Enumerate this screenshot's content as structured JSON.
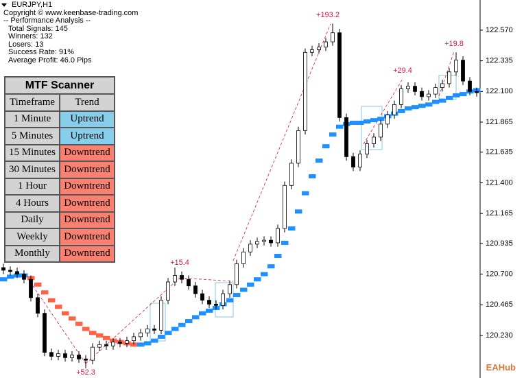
{
  "info": {
    "symbol": "EURJPY,H1",
    "copyright": "Copyright © www.keenbase-trading.com",
    "heading": "-- Performance Analysis --",
    "lines": [
      "Total Signals: 145",
      "Winners: 132",
      "Losers: 13",
      "Success Rate: 91%",
      "Average Profit: 46.0 Pips"
    ]
  },
  "scanner": {
    "title": "MTF Scanner",
    "header": [
      "Timeframe",
      "Trend"
    ],
    "rows": [
      {
        "timeframe": "1 Minute",
        "trend": "Uptrend",
        "color": "#87ceeb"
      },
      {
        "timeframe": "5 Minutes",
        "trend": "Uptrend",
        "color": "#87ceeb"
      },
      {
        "timeframe": "15 Minutes",
        "trend": "Downtrend",
        "color": "#fa8072"
      },
      {
        "timeframe": "30 Minutes",
        "trend": "Downtrend",
        "color": "#fa8072"
      },
      {
        "timeframe": "1 Hour",
        "trend": "Downtrend",
        "color": "#fa8072"
      },
      {
        "timeframe": "4 Hours",
        "trend": "Downtrend",
        "color": "#fa8072"
      },
      {
        "timeframe": "Daily",
        "trend": "Downtrend",
        "color": "#fa8072"
      },
      {
        "timeframe": "Weekly",
        "trend": "Downtrend",
        "color": "#fa8072"
      },
      {
        "timeframe": "Monthly",
        "trend": "Downtrend",
        "color": "#fa8072"
      }
    ]
  },
  "watermark": "EAHub",
  "chart_data": {
    "type": "candlestick",
    "ylim": [
      119.904,
      122.801
    ],
    "yticks": [
      {
        "value": 122.57,
        "label": "122.570"
      },
      122.335,
      {
        "value": 122.1,
        "label": "122.100"
      },
      121.865,
      121.635,
      {
        "value": 121.4,
        "label": "121.400"
      },
      121.165,
      120.935,
      {
        "value": 120.7,
        "label": "120.700"
      },
      120.465,
      {
        "value": 120.23,
        "label": "120.230"
      }
    ],
    "bull_color": "#ffffff",
    "bear_color": "#000000",
    "open": [
      120.75,
      120.73,
      120.72,
      120.7,
      120.66,
      120.52,
      120.4,
      120.1,
      120.07,
      120.09,
      120.06,
      120.08,
      120.05,
      120.04,
      120.14,
      120.16,
      120.15,
      120.18,
      120.17,
      120.19,
      120.22,
      120.25,
      120.28,
      120.27,
      120.5,
      120.64,
      120.69,
      120.66,
      120.61,
      120.55,
      120.5,
      120.47,
      120.46,
      120.55,
      120.62,
      120.78,
      120.87,
      120.93,
      120.95,
      120.96,
      120.94,
      121.05,
      121.38,
      121.55,
      121.8,
      122.4,
      122.42,
      122.44,
      122.48,
      122.55,
      121.9,
      121.6,
      121.52,
      121.62,
      121.7,
      121.75,
      121.85,
      121.92,
      122.0,
      122.12,
      122.14,
      122.1,
      122.06,
      122.08,
      122.13,
      122.16,
      122.25,
      122.34,
      122.18,
      122.1
    ],
    "high": [
      120.78,
      120.76,
      120.75,
      120.73,
      120.69,
      120.55,
      120.43,
      120.13,
      120.12,
      120.12,
      120.11,
      120.11,
      120.08,
      120.17,
      120.19,
      120.19,
      120.21,
      120.21,
      120.22,
      120.25,
      120.28,
      120.31,
      120.31,
      120.53,
      120.67,
      120.75,
      120.72,
      120.69,
      120.64,
      120.58,
      120.53,
      120.5,
      120.58,
      120.65,
      120.81,
      120.9,
      120.96,
      120.98,
      120.99,
      120.99,
      121.08,
      121.41,
      121.58,
      121.83,
      122.43,
      122.45,
      122.47,
      122.51,
      122.62,
      122.58,
      121.93,
      121.63,
      121.65,
      121.73,
      121.78,
      121.88,
      121.95,
      122.03,
      122.15,
      122.17,
      122.17,
      122.13,
      122.11,
      122.16,
      122.19,
      122.28,
      122.4,
      122.37,
      122.21,
      122.13
    ],
    "low": [
      120.7,
      120.69,
      120.67,
      120.63,
      120.49,
      120.37,
      120.07,
      120.04,
      120.04,
      120.03,
      120.03,
      120.02,
      119.98,
      120.01,
      120.11,
      120.12,
      120.12,
      120.14,
      120.14,
      120.16,
      120.19,
      120.22,
      120.24,
      120.24,
      120.47,
      120.61,
      120.63,
      120.58,
      120.52,
      120.47,
      120.44,
      120.43,
      120.43,
      120.52,
      120.59,
      120.75,
      120.84,
      120.9,
      120.92,
      120.91,
      120.91,
      121.02,
      121.35,
      121.52,
      121.77,
      122.37,
      122.39,
      122.41,
      122.45,
      121.87,
      121.57,
      121.49,
      121.49,
      121.59,
      121.67,
      121.72,
      121.82,
      121.89,
      121.97,
      122.09,
      122.07,
      122.03,
      122.03,
      122.05,
      122.1,
      122.13,
      122.22,
      122.15,
      122.07,
      122.06
    ],
    "close": [
      120.73,
      120.72,
      120.7,
      120.66,
      120.52,
      120.4,
      120.1,
      120.07,
      120.09,
      120.06,
      120.08,
      120.05,
      120.04,
      120.14,
      120.16,
      120.15,
      120.18,
      120.17,
      120.19,
      120.22,
      120.25,
      120.28,
      120.27,
      120.5,
      120.64,
      120.69,
      120.66,
      120.61,
      120.55,
      120.5,
      120.47,
      120.46,
      120.55,
      120.62,
      120.78,
      120.87,
      120.93,
      120.95,
      120.96,
      120.94,
      121.05,
      121.38,
      121.55,
      121.8,
      122.4,
      122.42,
      122.44,
      122.48,
      122.55,
      121.9,
      121.6,
      121.52,
      121.62,
      121.7,
      121.75,
      121.85,
      121.92,
      122.0,
      122.12,
      122.14,
      122.1,
      122.06,
      122.08,
      122.13,
      122.16,
      122.25,
      122.34,
      122.18,
      122.1,
      122.09
    ],
    "ma": {
      "up_color": "#1e90ff",
      "down_color": "#ff6347",
      "values": [
        120.66,
        120.68,
        120.69,
        120.69,
        120.67,
        120.62,
        120.56,
        120.5,
        120.45,
        120.4,
        120.36,
        120.32,
        120.28,
        120.25,
        120.23,
        120.21,
        120.19,
        120.18,
        120.17,
        120.16,
        120.16,
        120.17,
        120.19,
        120.22,
        120.25,
        120.28,
        120.31,
        120.34,
        120.37,
        120.4,
        120.42,
        120.44,
        120.47,
        120.5,
        120.54,
        120.58,
        120.62,
        120.66,
        120.7,
        120.76,
        120.84,
        120.94,
        121.05,
        121.18,
        121.32,
        121.45,
        121.57,
        121.68,
        121.77,
        121.83,
        121.85,
        121.86,
        121.86,
        121.87,
        121.88,
        121.89,
        121.91,
        121.93,
        121.95,
        121.97,
        121.98,
        121.99,
        122.0,
        122.02,
        122.03,
        122.05,
        122.07,
        122.08,
        122.1,
        122.11
      ]
    },
    "annotations": [
      "+193.2",
      "+52.3",
      "+15.4",
      "+29.4",
      "+19.8"
    ],
    "annotation_color": "#dc143c"
  }
}
